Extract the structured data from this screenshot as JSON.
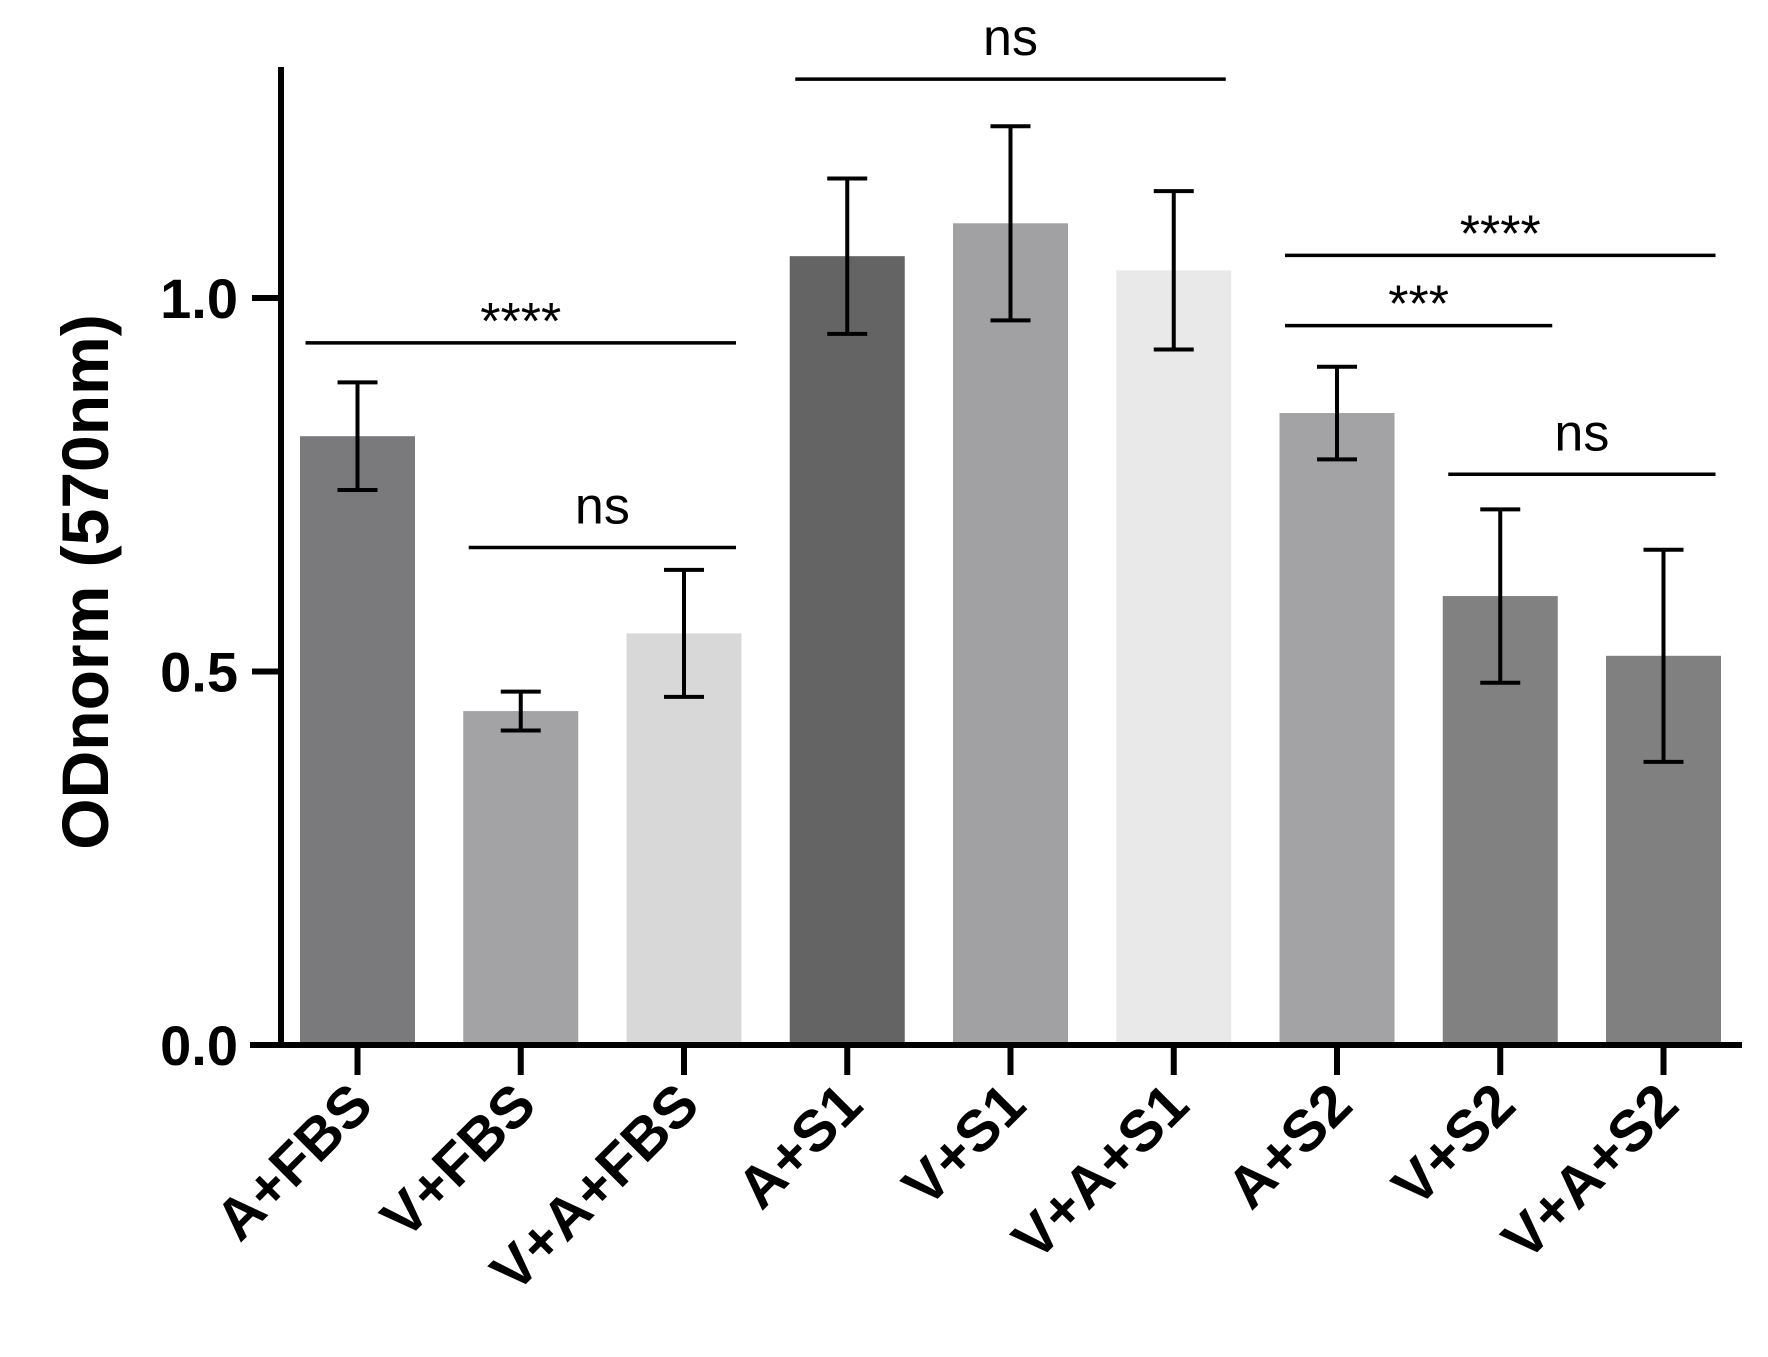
{
  "chart_data": {
    "type": "bar",
    "title": "",
    "xlabel": "",
    "ylabel": "ODnorm (570nm)",
    "ylim": [
      0,
      1.3
    ],
    "yticks": [
      {
        "value": 0.0,
        "label": "0.0"
      },
      {
        "value": 0.5,
        "label": "0.5"
      },
      {
        "value": 1.0,
        "label": "1.0"
      }
    ],
    "categories": [
      "A+FBS",
      "V+FBS",
      "V+A+FBS",
      "A+S1",
      "V+S1",
      "V+A+S1",
      "A+S2",
      "V+S2",
      "V+A+S2"
    ],
    "values": [
      0.815,
      0.447,
      0.551,
      1.056,
      1.1,
      1.037,
      0.846,
      0.601,
      0.521
    ],
    "errors": [
      0.072,
      0.026,
      0.085,
      0.104,
      0.13,
      0.106,
      0.062,
      0.116,
      0.142
    ],
    "colors": [
      "#7a7a7c",
      "#a3a3a6",
      "#d8d8d8",
      "#646464",
      "#a1a1a3",
      "#e9e9e9",
      "#a3a3a6",
      "#818181",
      "#808080"
    ],
    "significance": [
      {
        "from": 0,
        "to": 2,
        "y": 0.94,
        "label": "****"
      },
      {
        "from": 1,
        "to": 2,
        "y": 0.666,
        "label": "ns"
      },
      {
        "from": 3,
        "to": 5,
        "y": 1.293,
        "label": "ns"
      },
      {
        "from": 6,
        "to": 8,
        "y": 1.057,
        "label": "****"
      },
      {
        "from": 6,
        "to": 7,
        "y": 0.963,
        "label": "***"
      },
      {
        "from": 7,
        "to": 8,
        "y": 0.764,
        "label": "ns"
      }
    ]
  }
}
